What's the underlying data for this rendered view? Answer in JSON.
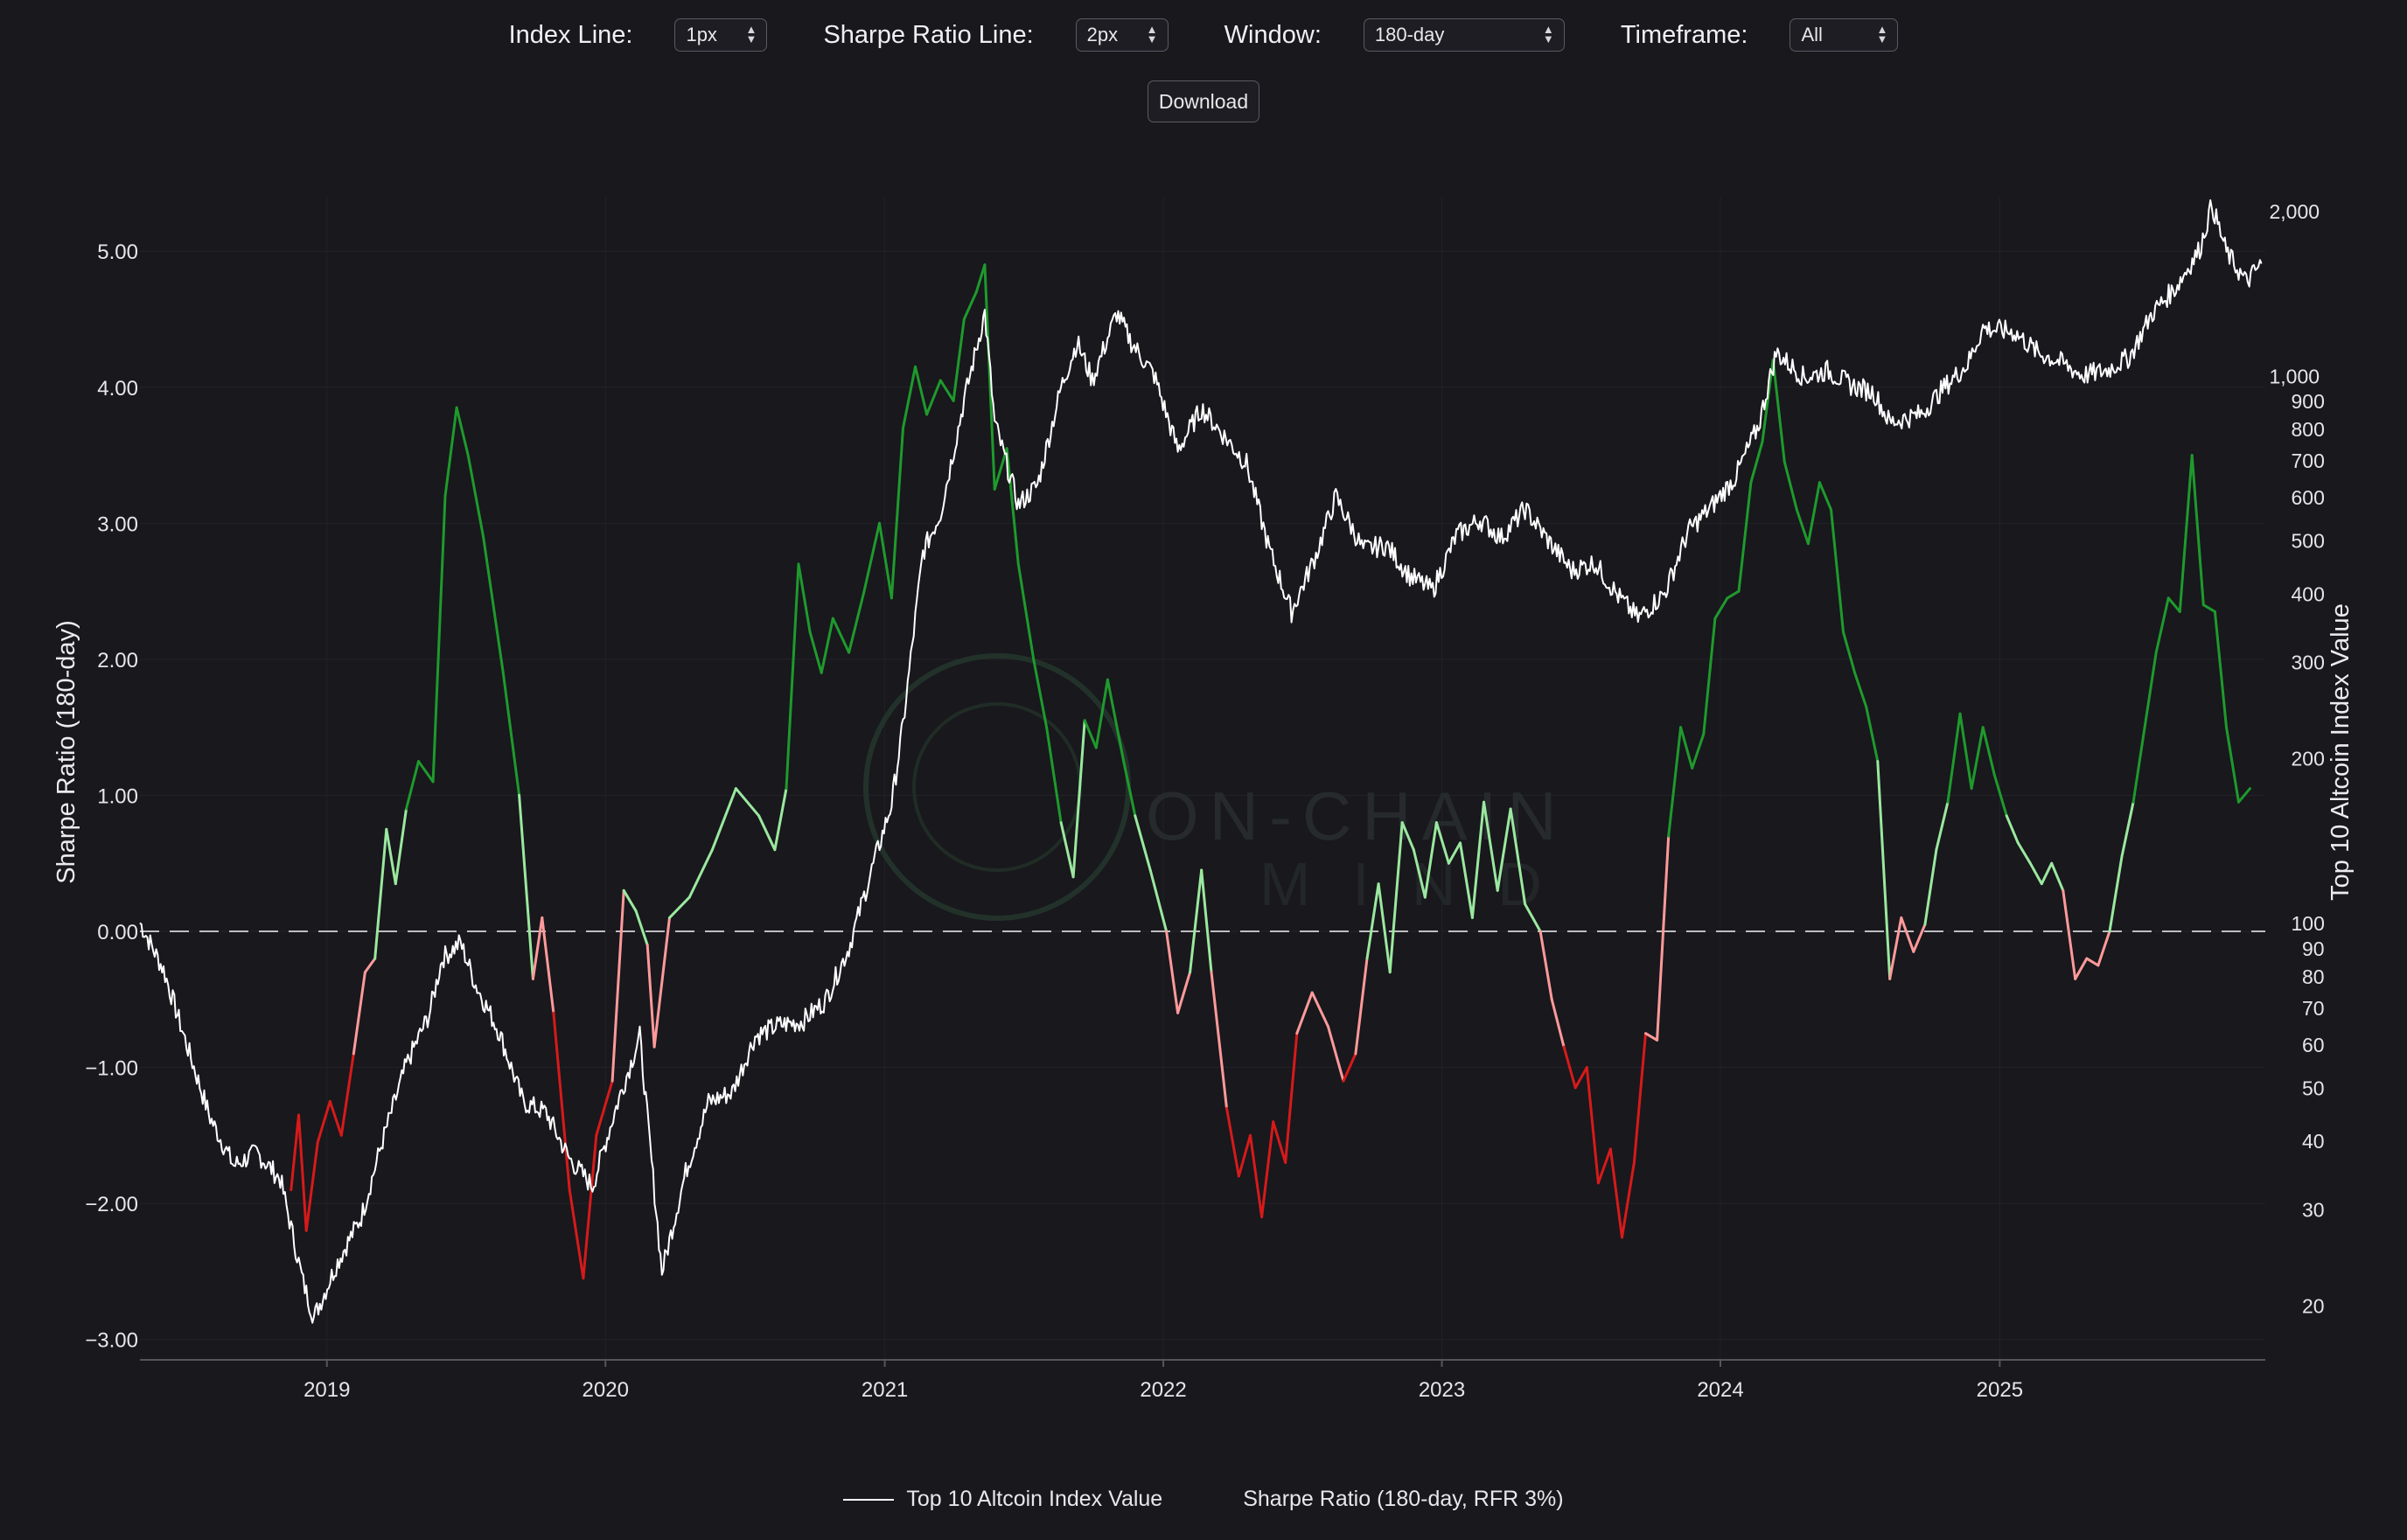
{
  "controls": {
    "index_line": {
      "label": "Index Line:",
      "value": "1px"
    },
    "sharpe_line": {
      "label": "Sharpe Ratio Line:",
      "value": "2px"
    },
    "window": {
      "label": "Window:",
      "value": "180-day"
    },
    "timeframe": {
      "label": "Timeframe:",
      "value": "All"
    },
    "download_label": "Download"
  },
  "watermark": {
    "line1": "ON-CHAIN",
    "line2": "MIND"
  },
  "legend": {
    "index": "Top 10 Altcoin Index Value",
    "sharpe": "Sharpe Ratio (180-day, RFR 3%)"
  },
  "colors": {
    "background": "#18181d",
    "index_line": "#ffffff",
    "strong_positive": "#1f9a2c",
    "weak_positive": "#9be89f",
    "weak_negative": "#ff9a9a",
    "strong_negative": "#d71a1a",
    "zero_line": "#bdbdc2"
  },
  "chart_data": {
    "type": "line",
    "title": "",
    "x_axis": {
      "type": "date",
      "range": [
        "2018-05-01",
        "2025-12-15"
      ],
      "ticks": [
        "2019",
        "2020",
        "2021",
        "2022",
        "2023",
        "2024",
        "2025"
      ]
    },
    "y_left": {
      "label": "Sharpe Ratio (180-day)",
      "range": [
        -3.15,
        5.4
      ],
      "ticks": [
        "5.00",
        "4.00",
        "3.00",
        "2.00",
        "1.00",
        "0.00",
        "−1.00",
        "−2.00",
        "−3.00"
      ]
    },
    "y_right": {
      "label": "Top 10 Altcoin Index Value",
      "scale": "log",
      "range": [
        15.9,
        2120
      ],
      "ticks": [
        "2,000",
        "1,000",
        "900",
        "800",
        "700",
        "600",
        "500",
        "400",
        "300",
        "200",
        "100",
        "90",
        "80",
        "70",
        "60",
        "50",
        "40",
        "30",
        "20"
      ]
    },
    "grid": true,
    "legend_position": "bottom",
    "series": [
      {
        "name": "Top 10 Altcoin Index Value",
        "axis": "right",
        "points": [
          [
            "2018-05-01",
            100
          ],
          [
            "2018-06-01",
            82
          ],
          [
            "2018-07-01",
            60
          ],
          [
            "2018-08-01",
            44
          ],
          [
            "2018-09-01",
            36
          ],
          [
            "2018-10-01",
            38
          ],
          [
            "2018-11-01",
            34
          ],
          [
            "2018-12-01",
            22
          ],
          [
            "2018-12-15",
            19
          ],
          [
            "2019-01-15",
            24
          ],
          [
            "2019-02-15",
            29
          ],
          [
            "2019-03-15",
            40
          ],
          [
            "2019-04-15",
            55
          ],
          [
            "2019-05-15",
            68
          ],
          [
            "2019-06-01",
            86
          ],
          [
            "2019-06-25",
            92
          ],
          [
            "2019-07-15",
            77
          ],
          [
            "2019-08-15",
            63
          ],
          [
            "2019-09-15",
            47
          ],
          [
            "2019-10-15",
            45
          ],
          [
            "2019-11-15",
            37
          ],
          [
            "2019-12-15",
            33
          ],
          [
            "2020-01-15",
            46
          ],
          [
            "2020-02-15",
            62
          ],
          [
            "2020-03-15",
            23
          ],
          [
            "2020-04-15",
            35
          ],
          [
            "2020-05-15",
            47
          ],
          [
            "2020-06-15",
            49
          ],
          [
            "2020-07-15",
            62
          ],
          [
            "2020-08-15",
            65
          ],
          [
            "2020-09-15",
            66
          ],
          [
            "2020-10-15",
            72
          ],
          [
            "2020-11-15",
            90
          ],
          [
            "2020-12-15",
            125
          ],
          [
            "2021-01-10",
            165
          ],
          [
            "2021-01-25",
            230
          ],
          [
            "2021-02-20",
            475
          ],
          [
            "2021-03-15",
            560
          ],
          [
            "2021-04-15",
            900
          ],
          [
            "2021-05-12",
            1300
          ],
          [
            "2021-05-25",
            820
          ],
          [
            "2021-06-25",
            580
          ],
          [
            "2021-07-20",
            630
          ],
          [
            "2021-08-20",
            950
          ],
          [
            "2021-09-10",
            1150
          ],
          [
            "2021-09-30",
            980
          ],
          [
            "2021-11-01",
            1300
          ],
          [
            "2021-11-20",
            1150
          ],
          [
            "2021-12-20",
            1000
          ],
          [
            "2022-01-20",
            730
          ],
          [
            "2022-02-20",
            870
          ],
          [
            "2022-03-20",
            780
          ],
          [
            "2022-04-20",
            690
          ],
          [
            "2022-05-20",
            480
          ],
          [
            "2022-06-18",
            370
          ],
          [
            "2022-07-20",
            470
          ],
          [
            "2022-08-15",
            600
          ],
          [
            "2022-09-20",
            480
          ],
          [
            "2022-10-20",
            490
          ],
          [
            "2022-11-20",
            430
          ],
          [
            "2022-12-20",
            405
          ],
          [
            "2023-01-20",
            510
          ],
          [
            "2023-02-20",
            545
          ],
          [
            "2023-03-20",
            505
          ],
          [
            "2023-04-20",
            570
          ],
          [
            "2023-05-20",
            500
          ],
          [
            "2023-06-20",
            440
          ],
          [
            "2023-07-20",
            455
          ],
          [
            "2023-08-20",
            395
          ],
          [
            "2023-09-15",
            360
          ],
          [
            "2023-10-20",
            400
          ],
          [
            "2023-11-20",
            520
          ],
          [
            "2023-12-20",
            575
          ],
          [
            "2024-01-20",
            650
          ],
          [
            "2024-02-20",
            810
          ],
          [
            "2024-03-14",
            1100
          ],
          [
            "2024-04-20",
            990
          ],
          [
            "2024-05-20",
            1020
          ],
          [
            "2024-06-20",
            960
          ],
          [
            "2024-07-20",
            930
          ],
          [
            "2024-08-10",
            820
          ],
          [
            "2024-09-20",
            850
          ],
          [
            "2024-10-20",
            950
          ],
          [
            "2024-11-20",
            1050
          ],
          [
            "2024-12-10",
            1220
          ],
          [
            "2025-01-20",
            1200
          ],
          [
            "2025-02-20",
            1100
          ],
          [
            "2025-03-20",
            1060
          ],
          [
            "2025-04-20",
            1000
          ],
          [
            "2025-05-20",
            1020
          ],
          [
            "2025-06-20",
            1080
          ],
          [
            "2025-07-20",
            1300
          ],
          [
            "2025-08-20",
            1450
          ],
          [
            "2025-09-20",
            1700
          ],
          [
            "2025-10-06",
            2050
          ],
          [
            "2025-10-25",
            1680
          ],
          [
            "2025-11-20",
            1480
          ],
          [
            "2025-12-10",
            1600
          ]
        ]
      },
      {
        "name": "Sharpe Ratio (180-day, RFR 3%)",
        "axis": "left",
        "points": [
          [
            "2018-11-15",
            -1.9
          ],
          [
            "2018-11-25",
            -1.35
          ],
          [
            "2018-12-05",
            -2.2
          ],
          [
            "2018-12-20",
            -1.55
          ],
          [
            "2019-01-05",
            -1.25
          ],
          [
            "2019-01-20",
            -1.5
          ],
          [
            "2019-02-05",
            -0.9
          ],
          [
            "2019-02-20",
            -0.3
          ],
          [
            "2019-03-05",
            -0.2
          ],
          [
            "2019-03-20",
            0.75
          ],
          [
            "2019-04-01",
            0.35
          ],
          [
            "2019-04-15",
            0.9
          ],
          [
            "2019-05-01",
            1.25
          ],
          [
            "2019-05-20",
            1.1
          ],
          [
            "2019-06-05",
            3.2
          ],
          [
            "2019-06-20",
            3.85
          ],
          [
            "2019-07-05",
            3.5
          ],
          [
            "2019-07-25",
            2.9
          ],
          [
            "2019-08-20",
            1.9
          ],
          [
            "2019-09-10",
            1.0
          ],
          [
            "2019-09-28",
            -0.35
          ],
          [
            "2019-10-10",
            0.1
          ],
          [
            "2019-10-25",
            -0.6
          ],
          [
            "2019-11-15",
            -1.9
          ],
          [
            "2019-12-03",
            -2.55
          ],
          [
            "2019-12-20",
            -1.5
          ],
          [
            "2020-01-10",
            -1.1
          ],
          [
            "2020-01-25",
            0.3
          ],
          [
            "2020-02-10",
            0.15
          ],
          [
            "2020-02-25",
            -0.1
          ],
          [
            "2020-03-05",
            -0.85
          ],
          [
            "2020-03-25",
            0.1
          ],
          [
            "2020-04-20",
            0.25
          ],
          [
            "2020-05-20",
            0.6
          ],
          [
            "2020-06-20",
            1.05
          ],
          [
            "2020-07-20",
            0.85
          ],
          [
            "2020-08-10",
            0.6
          ],
          [
            "2020-08-25",
            1.05
          ],
          [
            "2020-09-10",
            2.7
          ],
          [
            "2020-09-25",
            2.2
          ],
          [
            "2020-10-10",
            1.9
          ],
          [
            "2020-10-25",
            2.3
          ],
          [
            "2020-11-15",
            2.05
          ],
          [
            "2020-12-05",
            2.5
          ],
          [
            "2020-12-25",
            3.0
          ],
          [
            "2021-01-10",
            2.45
          ],
          [
            "2021-01-25",
            3.7
          ],
          [
            "2021-02-10",
            4.15
          ],
          [
            "2021-02-25",
            3.8
          ],
          [
            "2021-03-15",
            4.05
          ],
          [
            "2021-04-01",
            3.9
          ],
          [
            "2021-04-15",
            4.5
          ],
          [
            "2021-05-01",
            4.7
          ],
          [
            "2021-05-12",
            4.9
          ],
          [
            "2021-05-25",
            3.25
          ],
          [
            "2021-06-10",
            3.55
          ],
          [
            "2021-06-25",
            2.7
          ],
          [
            "2021-07-15",
            2.0
          ],
          [
            "2021-08-01",
            1.5
          ],
          [
            "2021-08-20",
            0.8
          ],
          [
            "2021-09-05",
            0.4
          ],
          [
            "2021-09-20",
            1.55
          ],
          [
            "2021-10-05",
            1.35
          ],
          [
            "2021-10-20",
            1.85
          ],
          [
            "2021-11-10",
            1.25
          ],
          [
            "2021-11-25",
            0.85
          ],
          [
            "2021-12-15",
            0.45
          ],
          [
            "2022-01-05",
            0.0
          ],
          [
            "2022-01-20",
            -0.6
          ],
          [
            "2022-02-05",
            -0.3
          ],
          [
            "2022-02-20",
            0.45
          ],
          [
            "2022-03-05",
            -0.3
          ],
          [
            "2022-03-25",
            -1.3
          ],
          [
            "2022-04-10",
            -1.8
          ],
          [
            "2022-04-25",
            -1.5
          ],
          [
            "2022-05-10",
            -2.1
          ],
          [
            "2022-05-25",
            -1.4
          ],
          [
            "2022-06-10",
            -1.7
          ],
          [
            "2022-06-25",
            -0.75
          ],
          [
            "2022-07-15",
            -0.45
          ],
          [
            "2022-08-05",
            -0.7
          ],
          [
            "2022-08-25",
            -1.1
          ],
          [
            "2022-09-10",
            -0.9
          ],
          [
            "2022-09-25",
            -0.2
          ],
          [
            "2022-10-10",
            0.35
          ],
          [
            "2022-10-25",
            -0.3
          ],
          [
            "2022-11-10",
            0.8
          ],
          [
            "2022-11-25",
            0.6
          ],
          [
            "2022-12-10",
            0.25
          ],
          [
            "2022-12-25",
            0.8
          ],
          [
            "2023-01-10",
            0.5
          ],
          [
            "2023-01-25",
            0.65
          ],
          [
            "2023-02-10",
            0.1
          ],
          [
            "2023-02-25",
            0.95
          ],
          [
            "2023-03-15",
            0.3
          ],
          [
            "2023-04-01",
            0.9
          ],
          [
            "2023-04-20",
            0.2
          ],
          [
            "2023-05-10",
            0.0
          ],
          [
            "2023-05-25",
            -0.5
          ],
          [
            "2023-06-10",
            -0.85
          ],
          [
            "2023-06-25",
            -1.15
          ],
          [
            "2023-07-10",
            -1.0
          ],
          [
            "2023-07-25",
            -1.85
          ],
          [
            "2023-08-10",
            -1.6
          ],
          [
            "2023-08-25",
            -2.25
          ],
          [
            "2023-09-10",
            -1.7
          ],
          [
            "2023-09-25",
            -0.75
          ],
          [
            "2023-10-10",
            -0.8
          ],
          [
            "2023-10-25",
            0.7
          ],
          [
            "2023-11-10",
            1.5
          ],
          [
            "2023-11-25",
            1.2
          ],
          [
            "2023-12-10",
            1.45
          ],
          [
            "2023-12-25",
            2.3
          ],
          [
            "2024-01-10",
            2.45
          ],
          [
            "2024-01-25",
            2.5
          ],
          [
            "2024-02-10",
            3.3
          ],
          [
            "2024-02-25",
            3.6
          ],
          [
            "2024-03-10",
            4.2
          ],
          [
            "2024-03-25",
            3.45
          ],
          [
            "2024-04-10",
            3.1
          ],
          [
            "2024-04-25",
            2.85
          ],
          [
            "2024-05-10",
            3.3
          ],
          [
            "2024-05-25",
            3.1
          ],
          [
            "2024-06-10",
            2.2
          ],
          [
            "2024-06-25",
            1.9
          ],
          [
            "2024-07-10",
            1.65
          ],
          [
            "2024-07-25",
            1.25
          ],
          [
            "2024-08-10",
            -0.35
          ],
          [
            "2024-08-25",
            0.1
          ],
          [
            "2024-09-10",
            -0.15
          ],
          [
            "2024-09-25",
            0.05
          ],
          [
            "2024-10-10",
            0.6
          ],
          [
            "2024-10-25",
            0.95
          ],
          [
            "2024-11-10",
            1.6
          ],
          [
            "2024-11-25",
            1.05
          ],
          [
            "2024-12-10",
            1.5
          ],
          [
            "2024-12-25",
            1.15
          ],
          [
            "2025-01-10",
            0.85
          ],
          [
            "2025-01-25",
            0.65
          ],
          [
            "2025-02-10",
            0.5
          ],
          [
            "2025-02-25",
            0.35
          ],
          [
            "2025-03-10",
            0.5
          ],
          [
            "2025-03-25",
            0.3
          ],
          [
            "2025-04-10",
            -0.35
          ],
          [
            "2025-04-25",
            -0.2
          ],
          [
            "2025-05-10",
            -0.25
          ],
          [
            "2025-05-25",
            0.0
          ],
          [
            "2025-06-10",
            0.55
          ],
          [
            "2025-06-25",
            0.95
          ],
          [
            "2025-07-10",
            1.5
          ],
          [
            "2025-07-25",
            2.05
          ],
          [
            "2025-08-10",
            2.45
          ],
          [
            "2025-08-25",
            2.35
          ],
          [
            "2025-09-10",
            3.5
          ],
          [
            "2025-09-25",
            2.4
          ],
          [
            "2025-10-10",
            2.35
          ],
          [
            "2025-10-25",
            1.5
          ],
          [
            "2025-11-10",
            0.95
          ],
          [
            "2025-11-25",
            1.05
          ]
        ]
      }
    ]
  }
}
